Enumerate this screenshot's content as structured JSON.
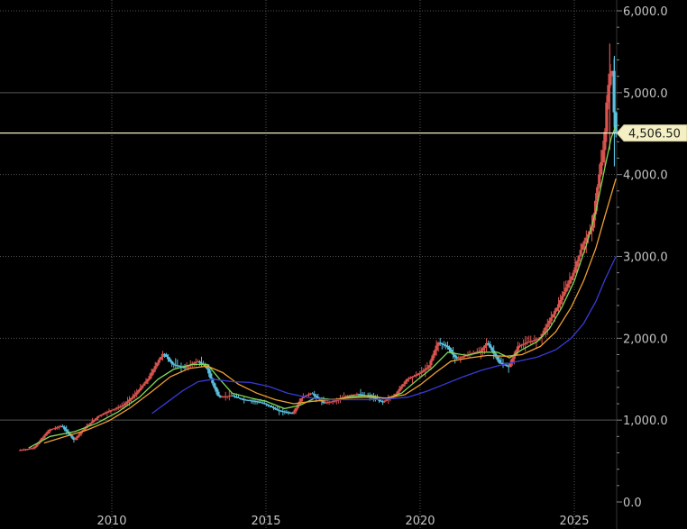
{
  "chart_data": {
    "type": "line",
    "title": "",
    "xlabel": "",
    "ylabel": "",
    "x_range": [
      2007.0,
      2026.6
    ],
    "ylim": [
      0,
      6200
    ],
    "x_ticks": [
      "2010",
      "2015",
      "2020",
      "2025"
    ],
    "x_tick_values": [
      2010,
      2015,
      2020,
      2025
    ],
    "y_ticks": [
      "0.0",
      "1,000.0",
      "2,000.0",
      "3,000.0",
      "4,000.0",
      "5,000.0",
      "6,000.0"
    ],
    "y_tick_values": [
      0,
      1000,
      2000,
      3000,
      4000,
      5000,
      6000
    ],
    "grid": true,
    "last_price": {
      "value": 4506.5,
      "label": "4,506.50"
    },
    "colors": {
      "background": "#000000",
      "grid": "#555555",
      "up": "#d9534f",
      "down": "#5bc0de",
      "ma_short": "#7ed957",
      "ma_mid": "#f0a030",
      "ma_long": "#3a3ad8",
      "price_line": "#f2f0c8",
      "label_bg": "#f4f0c4"
    },
    "price": {
      "x": [
        2007.0,
        2007.5,
        2008.0,
        2008.4,
        2008.8,
        2009.2,
        2009.6,
        2010.0,
        2010.4,
        2010.8,
        2011.2,
        2011.5,
        2011.7,
        2012.0,
        2012.4,
        2012.8,
        2013.1,
        2013.3,
        2013.5,
        2013.9,
        2014.3,
        2014.7,
        2015.0,
        2015.4,
        2015.9,
        2016.2,
        2016.5,
        2016.9,
        2017.3,
        2017.7,
        2018.0,
        2018.4,
        2018.8,
        2019.2,
        2019.6,
        2020.0,
        2020.3,
        2020.6,
        2020.9,
        2021.2,
        2021.6,
        2022.0,
        2022.2,
        2022.6,
        2022.9,
        2023.2,
        2023.5,
        2023.9,
        2024.2,
        2024.5,
        2024.8,
        2025.0,
        2025.3,
        2025.6,
        2025.8,
        2026.0,
        2026.1,
        2026.25,
        2026.35
      ],
      "values": [
        630,
        660,
        880,
        930,
        760,
        920,
        1050,
        1120,
        1180,
        1320,
        1500,
        1700,
        1820,
        1680,
        1640,
        1720,
        1650,
        1450,
        1280,
        1300,
        1250,
        1230,
        1200,
        1120,
        1080,
        1280,
        1330,
        1210,
        1240,
        1300,
        1320,
        1290,
        1220,
        1300,
        1500,
        1570,
        1650,
        1950,
        1900,
        1750,
        1800,
        1850,
        1950,
        1700,
        1650,
        1900,
        1950,
        2000,
        2200,
        2400,
        2650,
        2800,
        3150,
        3350,
        3900,
        4400,
        5000,
        5350,
        4506.5
      ]
    },
    "series": [
      {
        "values": [
          [
            2007.3,
            660
          ],
          [
            2008.0,
            800
          ],
          [
            2008.8,
            860
          ],
          [
            2009.5,
            960
          ],
          [
            2010.2,
            1100
          ],
          [
            2010.9,
            1280
          ],
          [
            2011.5,
            1500
          ],
          [
            2012.0,
            1620
          ],
          [
            2012.6,
            1680
          ],
          [
            2013.1,
            1680
          ],
          [
            2013.5,
            1500
          ],
          [
            2013.9,
            1330
          ],
          [
            2014.5,
            1270
          ],
          [
            2015.0,
            1230
          ],
          [
            2015.6,
            1140
          ],
          [
            2016.1,
            1180
          ],
          [
            2016.6,
            1270
          ],
          [
            2017.2,
            1250
          ],
          [
            2017.8,
            1290
          ],
          [
            2018.4,
            1300
          ],
          [
            2018.9,
            1260
          ],
          [
            2019.4,
            1330
          ],
          [
            2019.9,
            1490
          ],
          [
            2020.4,
            1640
          ],
          [
            2020.9,
            1830
          ],
          [
            2021.5,
            1790
          ],
          [
            2022.0,
            1830
          ],
          [
            2022.5,
            1830
          ],
          [
            2022.9,
            1760
          ],
          [
            2023.3,
            1860
          ],
          [
            2023.8,
            1960
          ],
          [
            2024.2,
            2120
          ],
          [
            2024.6,
            2380
          ],
          [
            2025.0,
            2700
          ],
          [
            2025.4,
            3150
          ],
          [
            2025.7,
            3550
          ],
          [
            2026.0,
            4100
          ],
          [
            2026.2,
            4450
          ],
          [
            2026.35,
            4600
          ]
        ]
      },
      {
        "values": [
          [
            2007.8,
            720
          ],
          [
            2008.5,
            800
          ],
          [
            2009.2,
            880
          ],
          [
            2009.9,
            990
          ],
          [
            2010.6,
            1150
          ],
          [
            2011.3,
            1350
          ],
          [
            2011.9,
            1530
          ],
          [
            2012.5,
            1630
          ],
          [
            2013.1,
            1660
          ],
          [
            2013.6,
            1580
          ],
          [
            2014.1,
            1440
          ],
          [
            2014.7,
            1330
          ],
          [
            2015.3,
            1250
          ],
          [
            2015.9,
            1200
          ],
          [
            2016.5,
            1230
          ],
          [
            2017.1,
            1250
          ],
          [
            2017.7,
            1270
          ],
          [
            2018.3,
            1280
          ],
          [
            2018.9,
            1270
          ],
          [
            2019.5,
            1310
          ],
          [
            2020.0,
            1430
          ],
          [
            2020.5,
            1580
          ],
          [
            2021.0,
            1720
          ],
          [
            2021.6,
            1760
          ],
          [
            2022.2,
            1790
          ],
          [
            2022.8,
            1780
          ],
          [
            2023.3,
            1800
          ],
          [
            2023.9,
            1900
          ],
          [
            2024.4,
            2080
          ],
          [
            2024.9,
            2380
          ],
          [
            2025.3,
            2700
          ],
          [
            2025.7,
            3100
          ],
          [
            2026.0,
            3500
          ],
          [
            2026.35,
            3950
          ]
        ]
      },
      {
        "values": [
          [
            2011.3,
            1080
          ],
          [
            2011.8,
            1220
          ],
          [
            2012.3,
            1360
          ],
          [
            2012.8,
            1470
          ],
          [
            2013.3,
            1500
          ],
          [
            2013.9,
            1470
          ],
          [
            2014.5,
            1460
          ],
          [
            2015.1,
            1410
          ],
          [
            2015.7,
            1330
          ],
          [
            2016.3,
            1280
          ],
          [
            2016.9,
            1250
          ],
          [
            2017.6,
            1250
          ],
          [
            2018.3,
            1250
          ],
          [
            2019.0,
            1260
          ],
          [
            2019.6,
            1280
          ],
          [
            2020.2,
            1350
          ],
          [
            2020.8,
            1440
          ],
          [
            2021.4,
            1530
          ],
          [
            2022.0,
            1610
          ],
          [
            2022.6,
            1670
          ],
          [
            2023.2,
            1720
          ],
          [
            2023.8,
            1770
          ],
          [
            2024.4,
            1860
          ],
          [
            2024.9,
            2000
          ],
          [
            2025.3,
            2180
          ],
          [
            2025.7,
            2450
          ],
          [
            2026.0,
            2720
          ],
          [
            2026.35,
            3000
          ]
        ]
      }
    ]
  }
}
